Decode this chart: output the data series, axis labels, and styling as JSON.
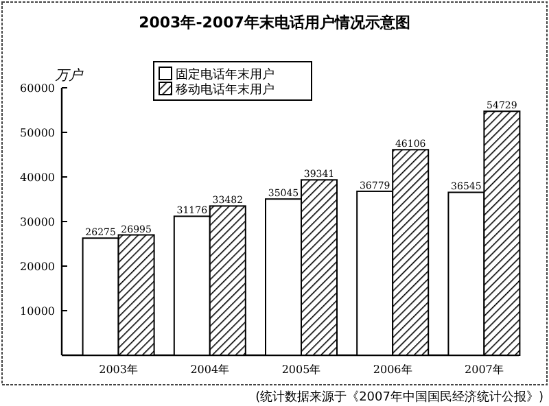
{
  "chart_data": {
    "type": "bar",
    "title": "2003年-2007年末电话用户情况示意图",
    "ylabel": "万户",
    "categories": [
      "2003年",
      "2004年",
      "2005年",
      "2006年",
      "2007年"
    ],
    "series": [
      {
        "name": "固定电话年末用户",
        "color": "#ffffff",
        "values": [
          26275,
          31176,
          35045,
          36779,
          36545
        ]
      },
      {
        "name": "移动电话年末用户",
        "color": "#000000",
        "values": [
          26995,
          33482,
          39341,
          46106,
          54729
        ]
      }
    ],
    "ylim": [
      0,
      60000
    ],
    "yticks": [
      {
        "value": 0,
        "label": null
      },
      10000,
      20000,
      30000,
      40000,
      50000,
      60000
    ],
    "data_labels": true,
    "grid": false,
    "legend": "top left",
    "annotations": [
      "(统计数据来源于《2007年中国国民经济统计公报》)"
    ]
  }
}
